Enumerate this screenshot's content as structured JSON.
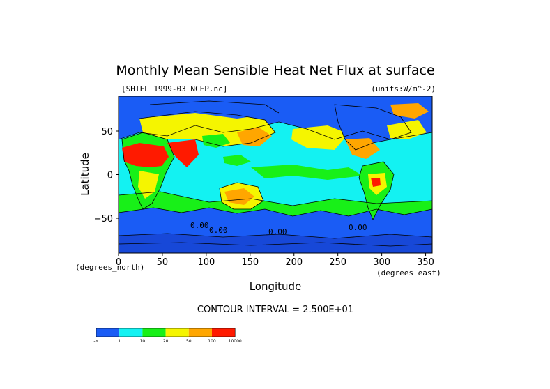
{
  "chart_data": {
    "type": "heatmap",
    "title": "Monthly Mean Sensible Heat Net Flux at surface",
    "file_label": "[SHTFL_1999-03_NCEP.nc]",
    "units_label": "(units:W/m^-2)",
    "xlabel": "Longitude",
    "ylabel": "Latitude",
    "x_unit_note": "(degrees_east)",
    "y_unit_note": "(degrees_north)",
    "xlim": [
      0,
      357.5
    ],
    "ylim": [
      -90,
      90
    ],
    "x_ticks": [
      "0",
      "50",
      "100",
      "150",
      "200",
      "250",
      "300",
      "350"
    ],
    "y_ticks": [
      "50",
      "0",
      "−50"
    ],
    "contour_interval": "CONTOUR INTERVAL = 2.500E+01",
    "contour_labels": [
      "0.00",
      "0.00",
      "0.00",
      "0.00"
    ],
    "colorbar": {
      "labels": [
        "-∞",
        "1",
        "10",
        "20",
        "50",
        "100",
        "10000"
      ],
      "colors": [
        "#1a5cf5",
        "#13f2f2",
        "#18f018",
        "#f5f500",
        "#ffa600",
        "#ff1a00"
      ]
    },
    "map_colors": {
      "ocean_cold": "#1a5cf5",
      "ocean_mild": "#13f2f2",
      "land_low": "#18f018",
      "land_mid": "#f5f500",
      "land_high": "#ffa600",
      "hot": "#ff1a00",
      "ice": "#1748d8"
    }
  }
}
